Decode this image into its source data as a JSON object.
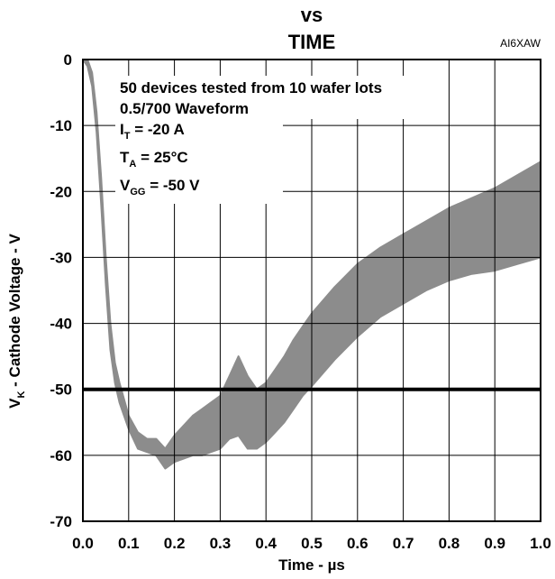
{
  "chart_data": {
    "type": "area",
    "title_line1": "vs",
    "title_line2": "TIME",
    "figure_code": "AI6XAW",
    "xlabel": "Time - µs",
    "ylabel_prefix": "V",
    "ylabel_sub": "K",
    "ylabel_rest": " - Cathode Voltage - V",
    "xlim": [
      0,
      1.0
    ],
    "ylim": [
      -70,
      0
    ],
    "x_ticks": [
      "0.0",
      "0.1",
      "0.2",
      "0.3",
      "0.4",
      "0.5",
      "0.6",
      "0.7",
      "0.8",
      "0.9",
      "1.0"
    ],
    "y_ticks": [
      "0",
      "-10",
      "-20",
      "-30",
      "-40",
      "-50",
      "-60",
      "-70"
    ],
    "x_tick_values": [
      0,
      0.1,
      0.2,
      0.3,
      0.4,
      0.5,
      0.6,
      0.7,
      0.8,
      0.9,
      1.0
    ],
    "y_tick_values": [
      0,
      -10,
      -20,
      -30,
      -40,
      -50,
      -60,
      -70
    ],
    "grid": true,
    "annotations": {
      "line1": "50 devices tested from 10 wafer lots",
      "line2": "0.5/700 Waveform",
      "line3_prefix": "I",
      "line3_sub": "T",
      "line3_rest": " = -20 A",
      "line4_prefix": "T",
      "line4_sub": "A",
      "line4_rest": " = 25°C",
      "line5_prefix": "V",
      "line5_sub": "GG",
      "line5_rest": " = -50 V"
    },
    "reference_line": {
      "y": -50,
      "color": "#000000"
    },
    "band": {
      "color": "#8c8c8c",
      "x": [
        0.0,
        0.01,
        0.02,
        0.03,
        0.04,
        0.05,
        0.06,
        0.07,
        0.08,
        0.1,
        0.12,
        0.14,
        0.16,
        0.18,
        0.2,
        0.22,
        0.24,
        0.26,
        0.28,
        0.3,
        0.32,
        0.34,
        0.36,
        0.38,
        0.4,
        0.42,
        0.44,
        0.46,
        0.48,
        0.5,
        0.55,
        0.6,
        0.65,
        0.7,
        0.75,
        0.8,
        0.85,
        0.9,
        0.95,
        1.0
      ],
      "upper": [
        0,
        0,
        -2,
        -8,
        -18,
        -30,
        -40,
        -46,
        -49,
        -54,
        -56.5,
        -57.5,
        -57.5,
        -59,
        -57,
        -55.5,
        -54,
        -53,
        -52,
        -51,
        -48,
        -45,
        -48,
        -50,
        -49,
        -47,
        -45,
        -42.5,
        -40.5,
        -38.5,
        -34.5,
        -31,
        -28.5,
        -26.5,
        -24.5,
        -22.5,
        -21,
        -19.5,
        -17.5,
        -15.5
      ],
      "lower": [
        0,
        -1,
        -4,
        -11,
        -22,
        -34,
        -44,
        -49,
        -52,
        -56,
        -59,
        -59.5,
        -60,
        -62,
        -61,
        -60.5,
        -60,
        -60,
        -59.5,
        -59,
        -57.5,
        -57,
        -59,
        -59,
        -58,
        -56.5,
        -55,
        -53,
        -51,
        -49.5,
        -45.5,
        -42,
        -39,
        -37,
        -35,
        -33.5,
        -32.5,
        -32,
        -31,
        -30
      ]
    }
  }
}
